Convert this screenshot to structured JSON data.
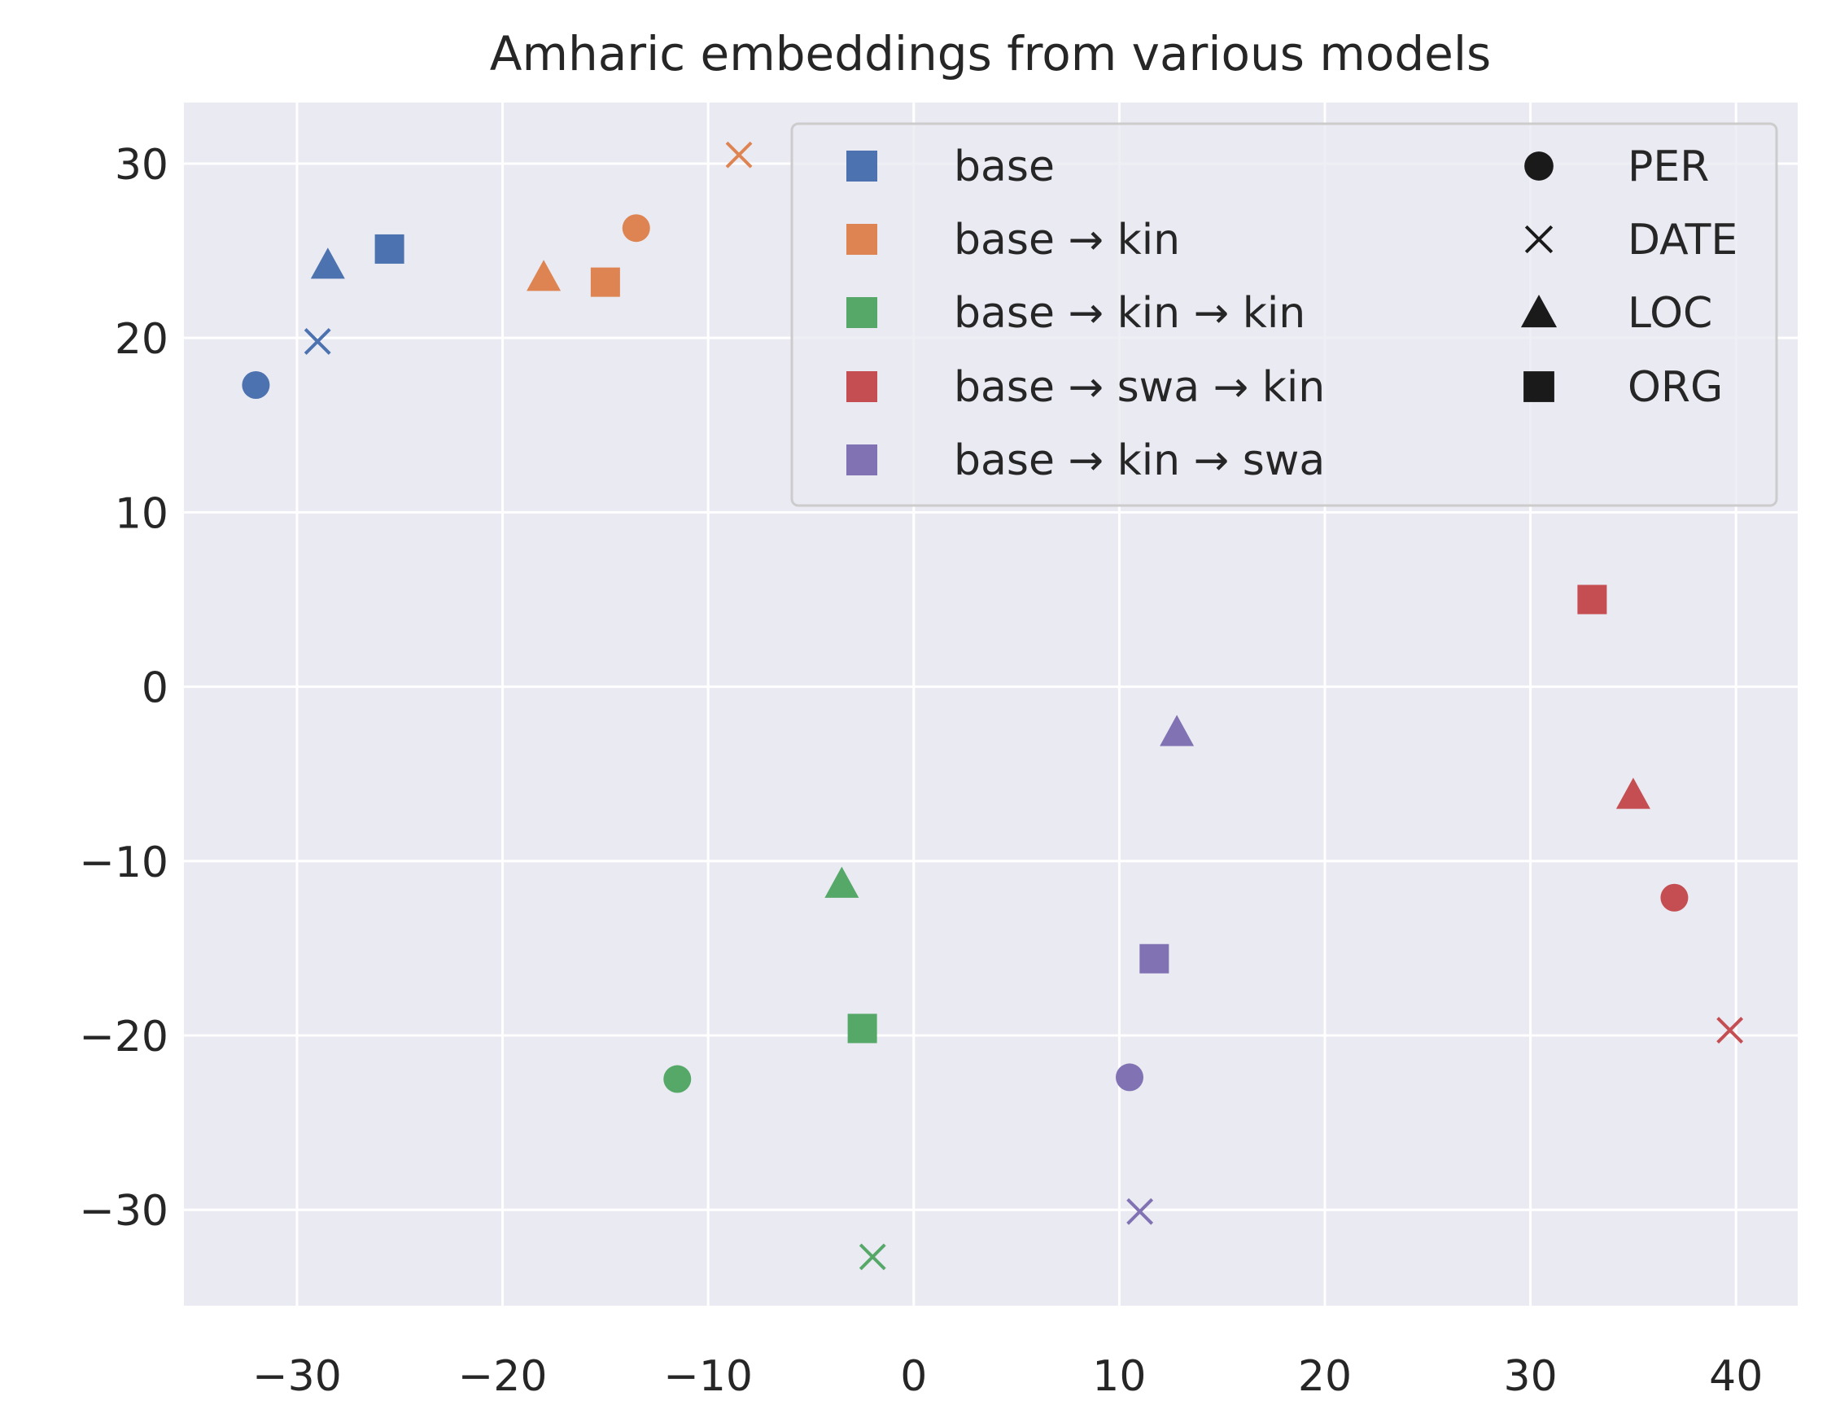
{
  "chart_data": {
    "type": "scatter",
    "title": "Amharic embeddings from various models",
    "xlabel": "",
    "ylabel": "",
    "xlim": [
      -35.5,
      43
    ],
    "ylim": [
      -35.5,
      33.5
    ],
    "xticks": [
      -30,
      -20,
      -10,
      0,
      10,
      20,
      30,
      40
    ],
    "yticks": [
      30,
      20,
      10,
      0,
      -10,
      -20,
      -30
    ],
    "xtick_labels": [
      "−30",
      "−20",
      "−10",
      "0",
      "10",
      "20",
      "30",
      "40"
    ],
    "ytick_labels": [
      "30",
      "20",
      "10",
      "0",
      "−10",
      "−20",
      "−30"
    ],
    "grid": true,
    "legend_position": "top-right",
    "series": [
      {
        "name": "base",
        "color": "#4c72b0",
        "points": [
          {
            "marker": "PER",
            "x": -32.0,
            "y": 17.3
          },
          {
            "marker": "DATE",
            "x": -29.0,
            "y": 19.8
          },
          {
            "marker": "LOC",
            "x": -28.5,
            "y": 24.2
          },
          {
            "marker": "ORG",
            "x": -25.5,
            "y": 25.1
          }
        ]
      },
      {
        "name": "base → kin",
        "color": "#dd8452",
        "points": [
          {
            "marker": "PER",
            "x": -13.5,
            "y": 26.3
          },
          {
            "marker": "DATE",
            "x": -8.5,
            "y": 30.5
          },
          {
            "marker": "LOC",
            "x": -18.0,
            "y": 23.5
          },
          {
            "marker": "ORG",
            "x": -15.0,
            "y": 23.2
          }
        ]
      },
      {
        "name": "base → kin → kin",
        "color": "#55a868",
        "points": [
          {
            "marker": "PER",
            "x": -11.5,
            "y": -22.5
          },
          {
            "marker": "DATE",
            "x": -2.0,
            "y": -32.7
          },
          {
            "marker": "LOC",
            "x": -3.5,
            "y": -11.3
          },
          {
            "marker": "ORG",
            "x": -2.5,
            "y": -19.6
          }
        ]
      },
      {
        "name": "base → swa → kin",
        "color": "#c44e52",
        "points": [
          {
            "marker": "PER",
            "x": 37.0,
            "y": -12.1
          },
          {
            "marker": "DATE",
            "x": 39.7,
            "y": -19.7
          },
          {
            "marker": "LOC",
            "x": 35.0,
            "y": -6.2
          },
          {
            "marker": "ORG",
            "x": 33.0,
            "y": 5.0
          }
        ]
      },
      {
        "name": "base → kin → swa",
        "color": "#8172b3",
        "points": [
          {
            "marker": "PER",
            "x": 10.5,
            "y": -22.4
          },
          {
            "marker": "DATE",
            "x": 11.0,
            "y": -30.1
          },
          {
            "marker": "LOC",
            "x": 12.8,
            "y": -2.6
          },
          {
            "marker": "ORG",
            "x": 11.7,
            "y": -15.6
          }
        ]
      }
    ],
    "marker_legend": [
      {
        "label": "PER",
        "marker": "circle"
      },
      {
        "label": "DATE",
        "marker": "x"
      },
      {
        "label": "LOC",
        "marker": "triangle"
      },
      {
        "label": "ORG",
        "marker": "square"
      }
    ],
    "style": {
      "background": "#eaeaf2",
      "grid_color": "#ffffff",
      "text_color": "#262626",
      "marker_legend_color": "#1a1a1a"
    }
  }
}
